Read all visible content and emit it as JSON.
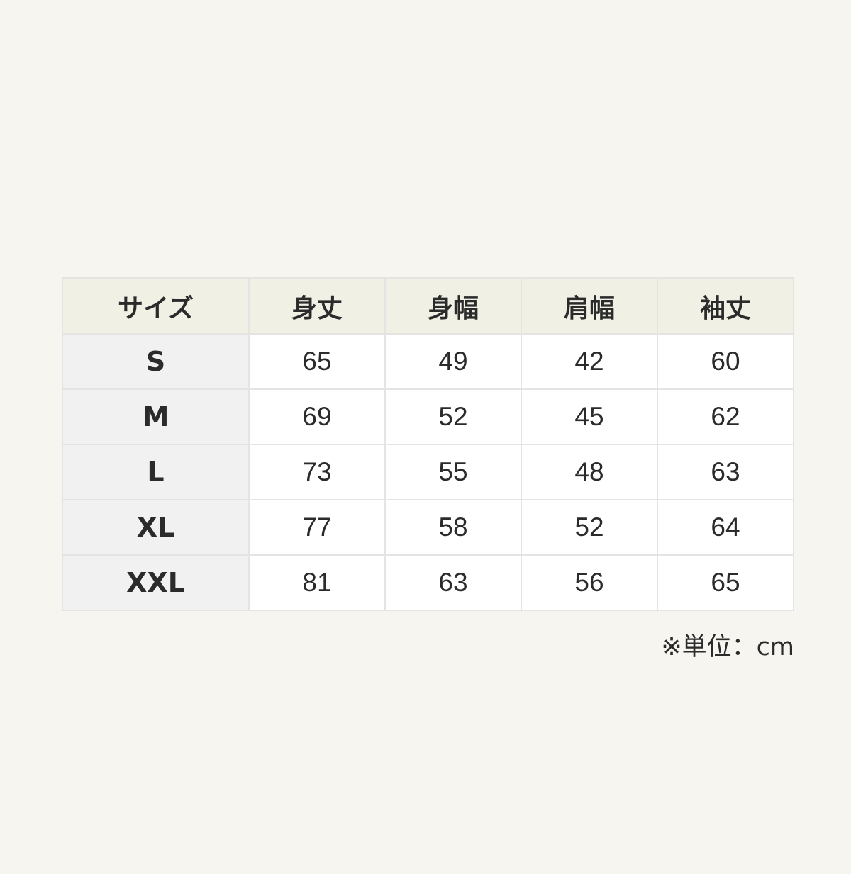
{
  "table": {
    "headers": [
      "サイズ",
      "身丈",
      "身幅",
      "肩幅",
      "袖丈"
    ],
    "rows": [
      {
        "size": "S",
        "values": [
          "65",
          "49",
          "42",
          "60"
        ]
      },
      {
        "size": "M",
        "values": [
          "69",
          "52",
          "45",
          "62"
        ]
      },
      {
        "size": "L",
        "values": [
          "73",
          "55",
          "48",
          "63"
        ]
      },
      {
        "size": "XL",
        "values": [
          "77",
          "58",
          "52",
          "64"
        ]
      },
      {
        "size": "XXL",
        "values": [
          "81",
          "63",
          "56",
          "65"
        ]
      }
    ]
  },
  "note": "※単位：cm"
}
